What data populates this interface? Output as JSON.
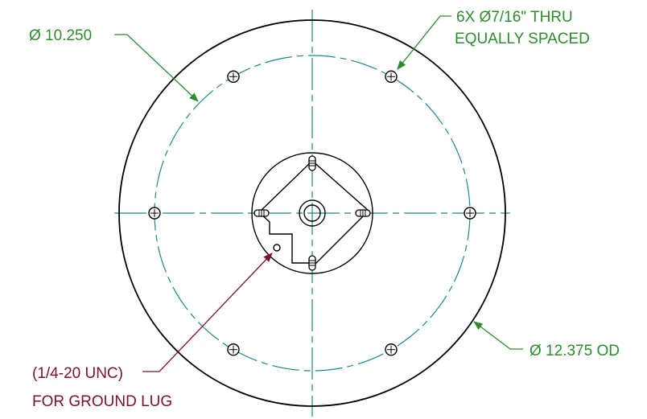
{
  "annotations": {
    "pitch_circle_dia": "Ø 10.250",
    "holes_line1": "6X  Ø7/16\" THRU",
    "holes_line2": "EQUALLY SPACED",
    "outer_dia": "Ø 12.375 OD",
    "ground_line1": "(1/4-20 UNC)",
    "ground_line2": "FOR GROUND LUG"
  },
  "colors": {
    "outline": "#000000",
    "centerline": "#1a8a8a",
    "dimension": "#2e8b2e",
    "callout": "#7a1038"
  },
  "holes": {
    "count": 6
  }
}
